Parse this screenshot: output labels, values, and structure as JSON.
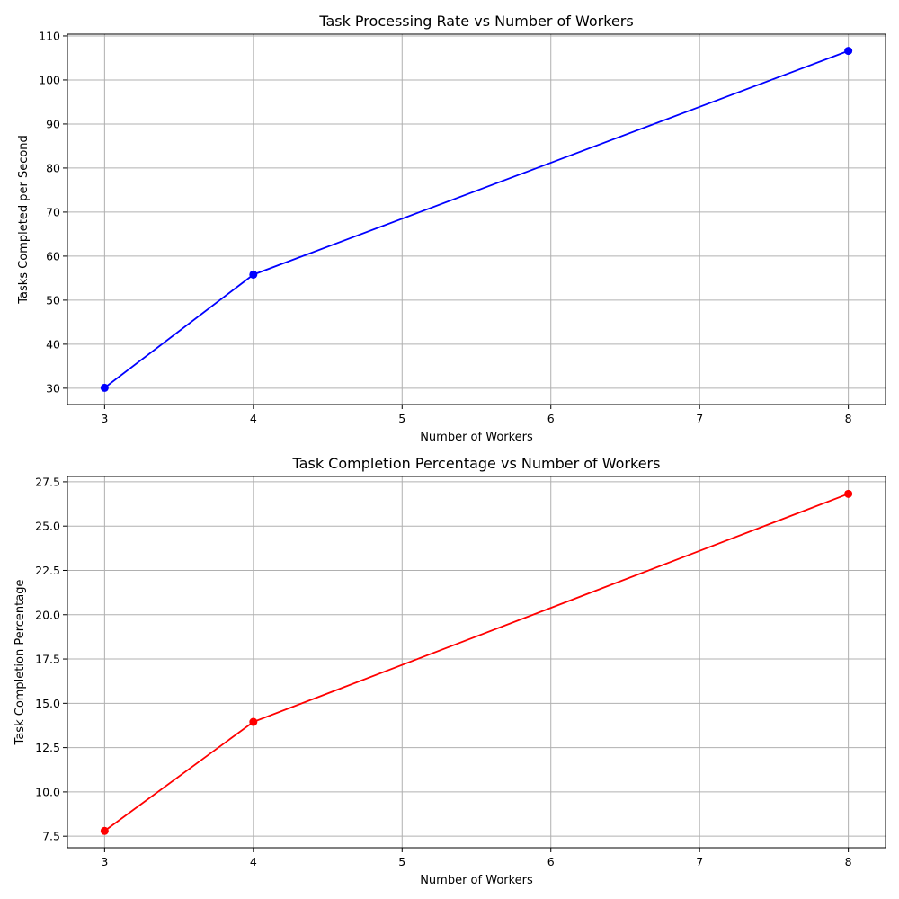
{
  "chart_data": [
    {
      "type": "line",
      "title": "Task Processing Rate vs Number of Workers",
      "xlabel": "Number of Workers",
      "ylabel": "Tasks Completed per Second",
      "x": [
        3,
        4,
        8
      ],
      "series": [
        {
          "values": [
            30.1,
            55.8,
            106.6
          ],
          "color": "#0000ff",
          "marker": "circle"
        }
      ],
      "xlim": [
        2.75,
        8.25
      ],
      "ylim": [
        26.3,
        110.4
      ],
      "xticks": [
        3,
        4,
        5,
        6,
        7,
        8
      ],
      "yticks": [
        30,
        40,
        50,
        60,
        70,
        80,
        90,
        100,
        110
      ],
      "ytick_labels": [
        "30",
        "40",
        "50",
        "60",
        "70",
        "80",
        "90",
        "100",
        "110"
      ],
      "grid": true
    },
    {
      "type": "line",
      "title": "Task Completion Percentage vs Number of Workers",
      "xlabel": "Number of Workers",
      "ylabel": "Task Completion Percentage",
      "x": [
        3,
        4,
        8
      ],
      "series": [
        {
          "values": [
            7.8,
            13.95,
            26.82
          ],
          "color": "#ff0000",
          "marker": "circle"
        }
      ],
      "xlim": [
        2.75,
        8.25
      ],
      "ylim": [
        6.85,
        27.8
      ],
      "xticks": [
        3,
        4,
        5,
        6,
        7,
        8
      ],
      "yticks": [
        7.5,
        10.0,
        12.5,
        15.0,
        17.5,
        20.0,
        22.5,
        25.0,
        27.5
      ],
      "ytick_labels": [
        "7.5",
        "10.0",
        "12.5",
        "15.0",
        "17.5",
        "20.0",
        "22.5",
        "25.0",
        "27.5"
      ],
      "grid": true
    }
  ]
}
